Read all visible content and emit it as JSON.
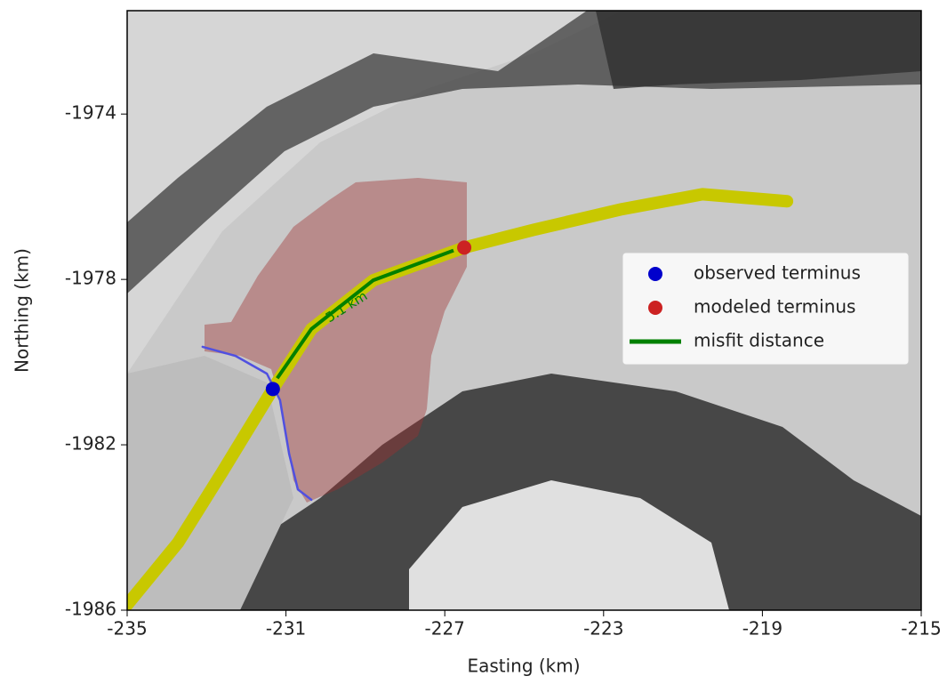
{
  "chart_data": {
    "type": "scatter",
    "xlabel": "Easting (km)",
    "ylabel": "Northing (km)",
    "xlim": [
      -235,
      -215
    ],
    "ylim": [
      -1986,
      -1971.5
    ],
    "xticks": [
      -235,
      -231,
      -227,
      -223,
      -219,
      -215
    ],
    "yticks": [
      -1974,
      -1978,
      -1982,
      -1986
    ],
    "lines": [
      {
        "color": "#c8c800",
        "width": 14,
        "x": [
          -235,
          -233.72,
          -232.6,
          -231.33,
          -230.36,
          -228.8,
          -226.51,
          -224.76,
          -222.53,
          -220.51,
          -218.38
        ],
        "y": [
          -1985.87,
          -1984.37,
          -1982.65,
          -1980.65,
          -1979.2,
          -1978.02,
          -1977.23,
          -1976.8,
          -1976.3,
          -1975.94,
          -1976.11
        ]
      },
      {
        "color": "#5050e0",
        "width": 2.5,
        "x": [
          -233.1,
          -232.27,
          -231.48,
          -231.15,
          -230.92,
          -230.7,
          -230.36
        ],
        "y": [
          -1979.63,
          -1979.85,
          -1980.28,
          -1980.92,
          -1982.22,
          -1983.08,
          -1983.33
        ]
      }
    ],
    "series": [
      {
        "name": "observed terminus",
        "color": "#0000cc",
        "mode": "marker",
        "x": [
          -231.33
        ],
        "y": [
          -1980.65
        ]
      },
      {
        "name": "modeled terminus",
        "color": "#cc2222",
        "mode": "marker",
        "x": [
          -226.51
        ],
        "y": [
          -1977.23
        ]
      },
      {
        "name": "misfit distance",
        "color": "#008000",
        "mode": "line",
        "x": [
          -231.22,
          -230.36,
          -228.8,
          -226.78
        ],
        "y": [
          -1980.39,
          -1979.2,
          -1978.02,
          -1977.3
        ]
      }
    ],
    "annotations": [
      {
        "text": "5.1 km",
        "x": -229.47,
        "y": -1978.67,
        "color": "#008000",
        "angle": -32
      }
    ],
    "legend": "center right"
  }
}
